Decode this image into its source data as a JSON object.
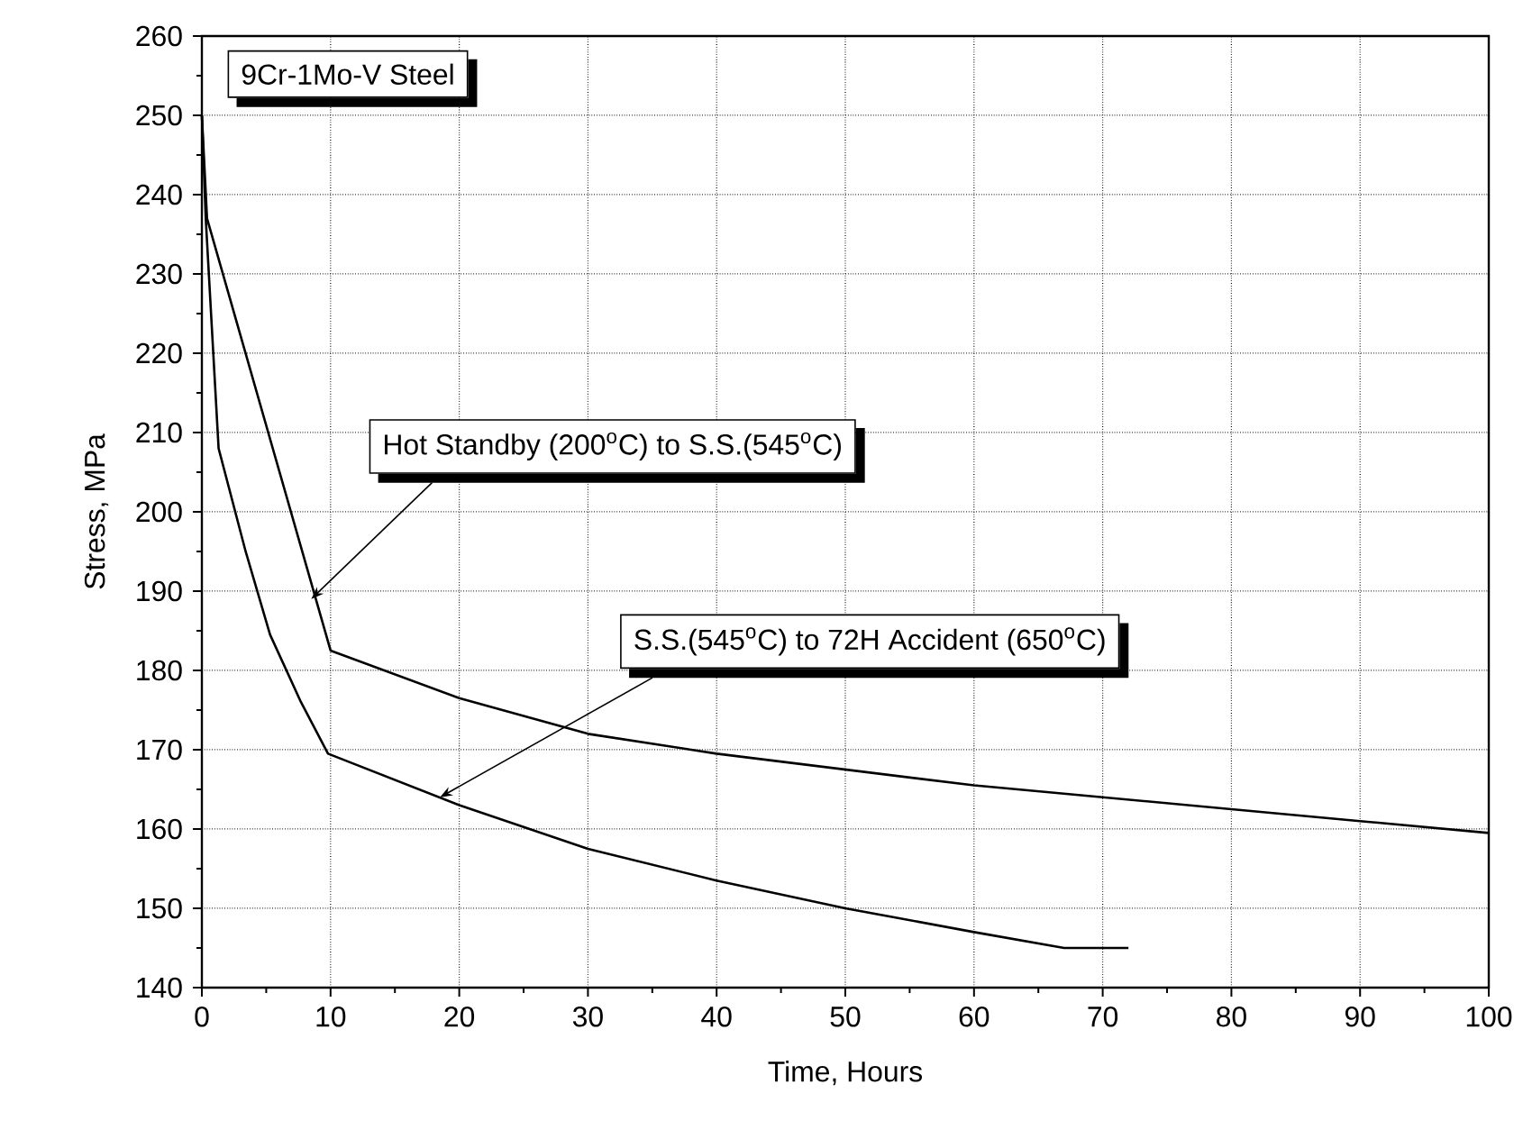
{
  "chart_data": {
    "type": "line",
    "title": "9Cr-1Mo-V Steel",
    "xlabel": "Time, Hours",
    "ylabel": "Stress, MPa",
    "series": [
      {
        "color": "#000000",
        "x": [
          0,
          0.4,
          10,
          20,
          30,
          40,
          50,
          60,
          70,
          80,
          90,
          100
        ],
        "values": [
          250,
          237,
          182.5,
          176.5,
          172,
          169.5,
          167.5,
          165.5,
          164,
          162.5,
          161,
          159.5
        ]
      },
      {
        "color": "#000000",
        "x": [
          0,
          0.3,
          1.3,
          3.4,
          5.3,
          7.7,
          9.8,
          20,
          30,
          40,
          50,
          60,
          67,
          72
        ],
        "values": [
          250,
          237,
          208,
          195,
          184.5,
          176,
          169.5,
          163,
          157.5,
          153.5,
          150,
          147,
          145,
          145
        ]
      }
    ],
    "annotations": [
      {
        "text": "Hot Standby (200$^{o}$C) to S.S.(545$^{o}$C)",
        "x": 8.5,
        "y": 189
      },
      {
        "text": "S.S.(545$^{o}$C) to 72H Accident (650$^{o}$C)",
        "x": 18.5,
        "y": 164
      }
    ],
    "xlim": [
      0,
      100
    ],
    "ylim": [
      140,
      260
    ],
    "xticks": [
      0,
      10,
      20,
      30,
      40,
      50,
      60,
      70,
      80,
      90,
      100
    ],
    "yticks": [
      140,
      150,
      160,
      170,
      180,
      190,
      200,
      210,
      220,
      230,
      240,
      250,
      260
    ],
    "grid": true,
    "marker": "none",
    "line_style": "solid"
  }
}
